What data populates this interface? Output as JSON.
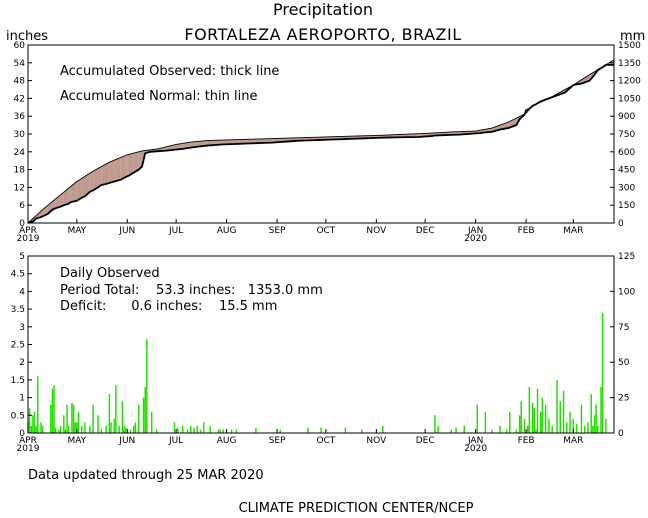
{
  "header": {
    "title": "Precipitation",
    "subtitle": "FORTALEZA AEROPORTO, BRAZIL",
    "left_unit": "inches",
    "right_unit": "mm"
  },
  "top_panel": {
    "legend_observed": "Accumulated Observed: thick line",
    "legend_normal": "Accumulated Normal: thin line"
  },
  "bottom_panel": {
    "label_daily": "Daily Observed",
    "label_total": "Period Total:    53.3 inches:   1353.0 mm",
    "label_deficit": "Deficit:      0.6 inches:    15.5 mm"
  },
  "footer": {
    "updated": "Data updated through 25 MAR 2020",
    "credit": "CLIMATE PREDICTION CENTER/NCEP"
  },
  "colors": {
    "deficit_fill": "#bf9a8e",
    "surplus_fill": "#66cc55",
    "bar_fill": "#22dd00",
    "line": "#000000"
  },
  "chart_data": [
    {
      "type": "area",
      "ylim": [
        0,
        60
      ],
      "y2lim": [
        0,
        1500
      ],
      "yticks": [
        "0",
        "6",
        "12",
        "18",
        "24",
        "30",
        "36",
        "42",
        "48",
        "54",
        "60"
      ],
      "y2ticks": [
        "0",
        "150",
        "300",
        "450",
        "600",
        "750",
        "900",
        "1050",
        "1200",
        "1350",
        "1500"
      ],
      "xlim": [
        0,
        360
      ],
      "month_ticks": [
        {
          "label": "APR",
          "x": 0,
          "year": "2019"
        },
        {
          "label": "MAY",
          "x": 30
        },
        {
          "label": "JUN",
          "x": 61
        },
        {
          "label": "JUL",
          "x": 91
        },
        {
          "label": "AUG",
          "x": 122
        },
        {
          "label": "SEP",
          "x": 153
        },
        {
          "label": "OCT",
          "x": 183
        },
        {
          "label": "NOV",
          "x": 214
        },
        {
          "label": "DEC",
          "x": 244
        },
        {
          "label": "JAN",
          "x": 275,
          "year": "2020"
        },
        {
          "label": "FEB",
          "x": 306
        },
        {
          "label": "MAR",
          "x": 335
        }
      ],
      "normal": {
        "x": [
          0,
          5,
          10,
          20,
          30,
          40,
          50,
          61,
          70,
          80,
          91,
          100,
          110,
          122,
          140,
          153,
          170,
          183,
          200,
          214,
          230,
          244,
          260,
          275,
          285,
          295,
          306,
          310,
          320,
          335,
          345,
          360
        ],
        "y": [
          0,
          2.5,
          5,
          9.5,
          14,
          17.5,
          20.5,
          23,
          24.3,
          25,
          26.5,
          27.3,
          27.8,
          28,
          28.3,
          28.5,
          28.8,
          29,
          29.3,
          29.5,
          29.9,
          30.2,
          30.7,
          31,
          32,
          34,
          37,
          39.5,
          42,
          46.5,
          50,
          55
        ]
      },
      "observed": {
        "x": [
          0,
          3,
          5,
          8,
          10,
          12,
          15,
          17,
          20,
          22,
          25,
          26,
          30,
          33,
          35,
          38,
          40,
          43,
          45,
          47,
          50,
          53,
          55,
          57,
          60,
          62,
          65,
          68,
          70,
          72,
          75,
          80,
          85,
          90,
          95,
          100,
          105,
          110,
          115,
          120,
          125,
          130,
          135,
          140,
          145,
          150,
          155,
          160,
          165,
          170,
          175,
          180,
          185,
          190,
          195,
          200,
          205,
          210,
          215,
          220,
          230,
          240,
          245,
          248,
          250,
          255,
          260,
          265,
          270,
          275,
          278,
          280,
          285,
          290,
          295,
          300,
          302,
          305,
          306,
          308,
          310,
          312,
          315,
          320,
          325,
          330,
          332,
          335,
          340,
          345,
          348,
          350,
          353,
          355,
          358,
          360
        ],
        "y": [
          0,
          0.5,
          1.5,
          2,
          2.5,
          3,
          4.5,
          5,
          5.5,
          6,
          6.5,
          7,
          7.5,
          8.5,
          9,
          10.5,
          11,
          12,
          12.8,
          13,
          13.5,
          14,
          14.3,
          14.6,
          15.5,
          16,
          17,
          18,
          19,
          23.5,
          24,
          24.2,
          24.4,
          24.7,
          25,
          25.4,
          25.8,
          26.1,
          26.3,
          26.5,
          26.6,
          26.7,
          26.8,
          26.9,
          27,
          27.1,
          27.3,
          27.5,
          27.7,
          27.8,
          27.9,
          28,
          28.1,
          28.2,
          28.3,
          28.4,
          28.5,
          28.6,
          28.7,
          28.8,
          28.9,
          29,
          29.2,
          29.3,
          29.5,
          29.6,
          29.7,
          29.8,
          30,
          30.2,
          30.3,
          30.5,
          30.7,
          31.5,
          32,
          33,
          35,
          36.5,
          38,
          38.5,
          39.5,
          40,
          41,
          42,
          43,
          44,
          45,
          46.5,
          47,
          48,
          50,
          51.5,
          52.5,
          53.3,
          53.3,
          53.3
        ]
      }
    },
    {
      "type": "bar",
      "ylim": [
        0,
        5
      ],
      "y2lim": [
        0,
        125
      ],
      "yticks": [
        "0",
        "0.5",
        "1",
        "1.5",
        "2",
        "2.5",
        "3",
        "3.5",
        "4",
        "4.5",
        "5"
      ],
      "y2ticks": [
        "0",
        "25",
        "50",
        "75",
        "100",
        "125"
      ],
      "x": [
        0,
        1,
        2,
        3,
        4,
        5,
        6,
        8,
        9,
        14,
        15,
        16,
        17,
        19,
        20,
        22,
        23,
        24,
        25,
        27,
        28,
        29,
        30,
        31,
        33,
        35,
        38,
        40,
        43,
        45,
        48,
        50,
        51,
        53,
        54,
        56,
        58,
        59,
        60,
        63,
        65,
        66,
        68,
        71,
        72,
        73,
        76,
        79,
        90,
        92,
        95,
        98,
        100,
        102,
        104,
        106,
        108,
        112,
        117,
        118,
        120,
        125,
        128,
        140,
        155,
        172,
        180,
        195,
        205,
        218,
        250,
        252,
        260,
        263,
        268,
        276,
        281,
        285,
        290,
        294,
        296,
        300,
        302,
        303,
        305,
        307,
        308,
        310,
        311,
        312,
        313,
        315,
        316,
        318,
        320,
        322,
        325,
        327,
        329,
        331,
        333,
        335,
        337,
        340,
        342,
        344,
        346,
        347,
        348,
        349,
        350,
        352,
        353,
        355
      ],
      "values": [
        0.3,
        0.7,
        0.2,
        0.5,
        0.6,
        0.2,
        1.6,
        0.3,
        0.2,
        0.8,
        1.25,
        1.35,
        0.15,
        0.1,
        0.2,
        0.5,
        0.1,
        0.8,
        0.2,
        0.85,
        0.8,
        0.3,
        0.3,
        0.6,
        0.2,
        0.3,
        0.2,
        0.8,
        0.5,
        0.1,
        0.2,
        1.1,
        0.3,
        0.4,
        1.35,
        0.2,
        0.9,
        0.2,
        0.15,
        0.1,
        0.2,
        0.3,
        0.8,
        1.0,
        1.3,
        2.65,
        0.6,
        0.1,
        0.3,
        0.15,
        0.2,
        0.1,
        0.2,
        0.15,
        0.2,
        0.1,
        0.3,
        0.2,
        0.1,
        0.1,
        0.1,
        0.1,
        0.1,
        0.15,
        0.1,
        0.15,
        0.15,
        0.15,
        0.1,
        0.2,
        0.5,
        0.2,
        0.1,
        0.15,
        0.2,
        0.8,
        0.6,
        0.1,
        0.2,
        0.1,
        0.6,
        0.1,
        0.5,
        0.9,
        0.4,
        0.2,
        1.3,
        0.85,
        0.7,
        0.1,
        1.25,
        0.6,
        1.0,
        0.8,
        0.4,
        0.2,
        1.5,
        0.9,
        1.2,
        0.3,
        0.6,
        0.4,
        0.25,
        0.8,
        0.2,
        0.3,
        1.1,
        0.2,
        0.5,
        0.8,
        0.2,
        1.3,
        3.4,
        0.4
      ]
    }
  ]
}
